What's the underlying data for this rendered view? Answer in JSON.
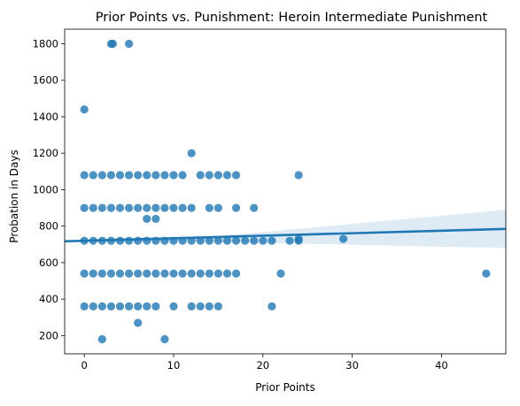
{
  "chart_data": {
    "type": "scatter",
    "title": "Prior Points vs. Punishment: Heroin Intermediate Punishment",
    "xlabel": "Prior Points",
    "ylabel": "Probation in Days",
    "xlim": [
      -2.2,
      47.2
    ],
    "ylim": [
      100,
      1880
    ],
    "x_ticks": [
      0,
      10,
      20,
      30,
      40
    ],
    "y_ticks": [
      200,
      400,
      600,
      800,
      1000,
      1200,
      1400,
      1600,
      1800
    ],
    "grid": false,
    "legend": "none",
    "points": [
      {
        "x": 3,
        "y": 1800
      },
      {
        "x": 3.2,
        "y": 1800
      },
      {
        "x": 5,
        "y": 1800
      },
      {
        "x": 0,
        "y": 1440
      },
      {
        "x": 12,
        "y": 1200
      },
      {
        "x": 0,
        "y": 1080
      },
      {
        "x": 1,
        "y": 1080
      },
      {
        "x": 2,
        "y": 1080
      },
      {
        "x": 3,
        "y": 1080
      },
      {
        "x": 4,
        "y": 1080
      },
      {
        "x": 5,
        "y": 1080
      },
      {
        "x": 6,
        "y": 1080
      },
      {
        "x": 7,
        "y": 1080
      },
      {
        "x": 8,
        "y": 1080
      },
      {
        "x": 9,
        "y": 1080
      },
      {
        "x": 10,
        "y": 1080
      },
      {
        "x": 11,
        "y": 1080
      },
      {
        "x": 13,
        "y": 1080
      },
      {
        "x": 14,
        "y": 1080
      },
      {
        "x": 15,
        "y": 1080
      },
      {
        "x": 16,
        "y": 1080
      },
      {
        "x": 17,
        "y": 1080
      },
      {
        "x": 24,
        "y": 1080
      },
      {
        "x": 0,
        "y": 900
      },
      {
        "x": 1,
        "y": 900
      },
      {
        "x": 2,
        "y": 900
      },
      {
        "x": 3,
        "y": 900
      },
      {
        "x": 4,
        "y": 900
      },
      {
        "x": 5,
        "y": 900
      },
      {
        "x": 6,
        "y": 900
      },
      {
        "x": 7,
        "y": 900
      },
      {
        "x": 8,
        "y": 900
      },
      {
        "x": 9,
        "y": 900
      },
      {
        "x": 10,
        "y": 900
      },
      {
        "x": 11,
        "y": 900
      },
      {
        "x": 12,
        "y": 900
      },
      {
        "x": 14,
        "y": 900
      },
      {
        "x": 15,
        "y": 900
      },
      {
        "x": 17,
        "y": 900
      },
      {
        "x": 19,
        "y": 900
      },
      {
        "x": 7,
        "y": 840
      },
      {
        "x": 8,
        "y": 840
      },
      {
        "x": 0,
        "y": 720
      },
      {
        "x": 1,
        "y": 720
      },
      {
        "x": 2,
        "y": 720
      },
      {
        "x": 3,
        "y": 720
      },
      {
        "x": 4,
        "y": 720
      },
      {
        "x": 5,
        "y": 720
      },
      {
        "x": 6,
        "y": 720
      },
      {
        "x": 7,
        "y": 720
      },
      {
        "x": 8,
        "y": 720
      },
      {
        "x": 9,
        "y": 720
      },
      {
        "x": 10,
        "y": 720
      },
      {
        "x": 11,
        "y": 720
      },
      {
        "x": 12,
        "y": 720
      },
      {
        "x": 13,
        "y": 720
      },
      {
        "x": 14,
        "y": 720
      },
      {
        "x": 15,
        "y": 720
      },
      {
        "x": 16,
        "y": 720
      },
      {
        "x": 17,
        "y": 720
      },
      {
        "x": 18,
        "y": 720
      },
      {
        "x": 19,
        "y": 720
      },
      {
        "x": 20,
        "y": 720
      },
      {
        "x": 21,
        "y": 720
      },
      {
        "x": 23,
        "y": 720
      },
      {
        "x": 24,
        "y": 720
      },
      {
        "x": 29,
        "y": 730
      },
      {
        "x": 24,
        "y": 730
      },
      {
        "x": 0,
        "y": 540
      },
      {
        "x": 1,
        "y": 540
      },
      {
        "x": 2,
        "y": 540
      },
      {
        "x": 3,
        "y": 540
      },
      {
        "x": 4,
        "y": 540
      },
      {
        "x": 5,
        "y": 540
      },
      {
        "x": 6,
        "y": 540
      },
      {
        "x": 7,
        "y": 540
      },
      {
        "x": 8,
        "y": 540
      },
      {
        "x": 9,
        "y": 540
      },
      {
        "x": 10,
        "y": 540
      },
      {
        "x": 11,
        "y": 540
      },
      {
        "x": 12,
        "y": 540
      },
      {
        "x": 13,
        "y": 540
      },
      {
        "x": 14,
        "y": 540
      },
      {
        "x": 15,
        "y": 540
      },
      {
        "x": 16,
        "y": 540
      },
      {
        "x": 17,
        "y": 540
      },
      {
        "x": 22,
        "y": 540
      },
      {
        "x": 45,
        "y": 540
      },
      {
        "x": 0,
        "y": 360
      },
      {
        "x": 1,
        "y": 360
      },
      {
        "x": 2,
        "y": 360
      },
      {
        "x": 3,
        "y": 360
      },
      {
        "x": 4,
        "y": 360
      },
      {
        "x": 5,
        "y": 360
      },
      {
        "x": 6,
        "y": 360
      },
      {
        "x": 7,
        "y": 360
      },
      {
        "x": 8,
        "y": 360
      },
      {
        "x": 10,
        "y": 360
      },
      {
        "x": 12,
        "y": 360
      },
      {
        "x": 13,
        "y": 360
      },
      {
        "x": 14,
        "y": 360
      },
      {
        "x": 15,
        "y": 360
      },
      {
        "x": 21,
        "y": 360
      },
      {
        "x": 6,
        "y": 270
      },
      {
        "x": 2,
        "y": 180
      },
      {
        "x": 9,
        "y": 180
      }
    ],
    "regression": {
      "x_start": -2.2,
      "y_start": 717,
      "x_end": 47.2,
      "y_end": 785,
      "ci_upper_end": 890,
      "ci_lower_end": 680,
      "ci_mid_x": 12,
      "ci_mid_upper": 731,
      "ci_mid_lower": 717
    },
    "colors": {
      "point": "#1f77b4",
      "line": "#1f77b4",
      "band": "#1f77b4"
    }
  }
}
